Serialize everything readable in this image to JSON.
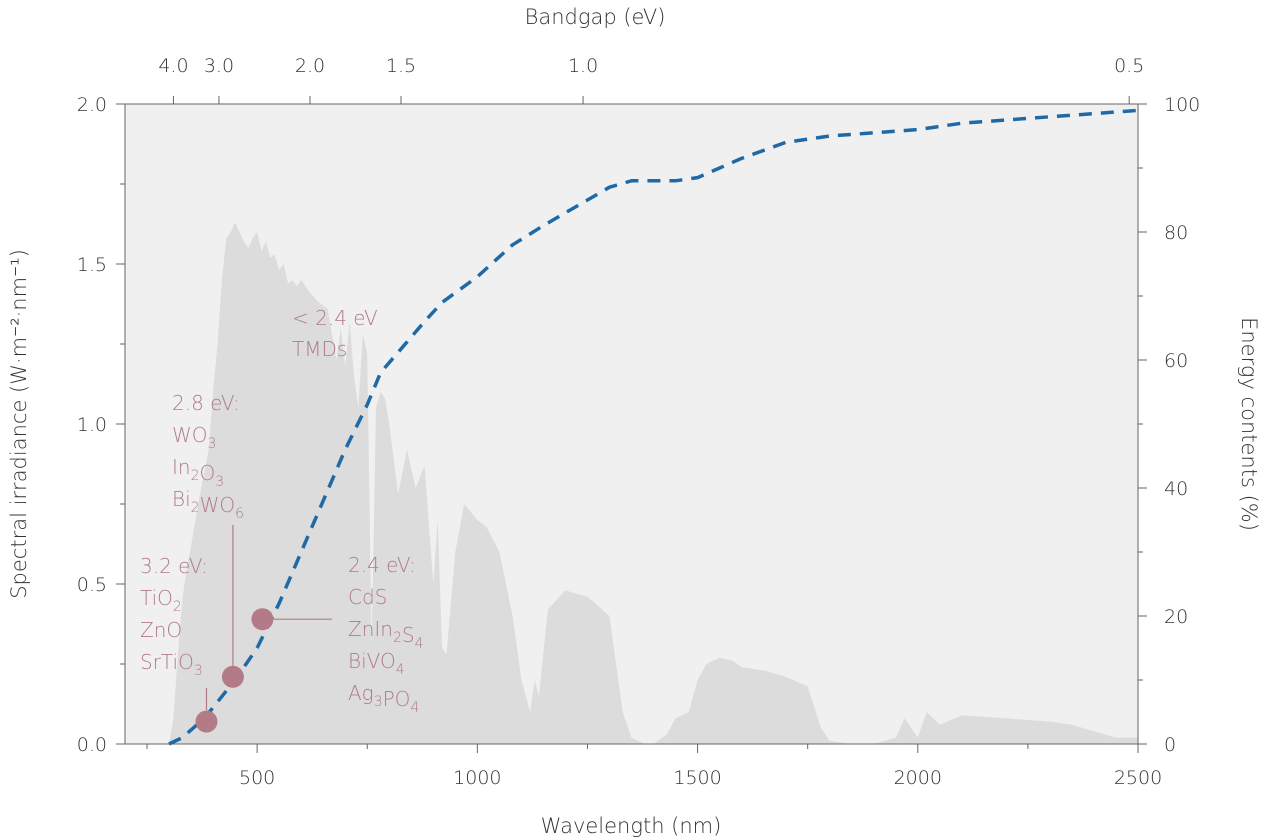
{
  "chart_data": {
    "type": "area",
    "xlabel": "Wavelength (nm)",
    "ylabel_left": "Spectral irradiance (W·m⁻²·nm⁻¹)",
    "ylabel_right": "Energy contents (%)",
    "top_axis_label": "Bandgap (eV)",
    "xlim": [
      200,
      2500
    ],
    "ylim_left": [
      0,
      2.0
    ],
    "ylim_right": [
      0,
      100
    ],
    "x_ticks": [
      500,
      1000,
      1500,
      2000,
      2500
    ],
    "y_left_ticks": [
      0.0,
      0.5,
      1.0,
      1.5,
      2.0
    ],
    "y_right_ticks": [
      0,
      20,
      40,
      60,
      80,
      100
    ],
    "top_ticks": [
      {
        "label": "4.0",
        "ev": 4.0
      },
      {
        "label": "3.0",
        "ev": 3.0
      },
      {
        "label": "2.0",
        "ev": 2.0
      },
      {
        "label": "1.5",
        "ev": 1.5
      },
      {
        "label": "1.0",
        "ev": 1.0
      },
      {
        "label": "0.5",
        "ev": 0.5
      }
    ],
    "colors": {
      "spectrum": "#dcdcdc",
      "energy_line": "#1f6aa6",
      "annotation": "#b07a88",
      "marker": "#b37a87",
      "axis": "#666666",
      "plot_bg": "#f0f0f0"
    },
    "series": [
      {
        "name": "Spectral irradiance",
        "axis": "left",
        "style": "filled-area",
        "x": [
          300,
          310,
          320,
          330,
          340,
          350,
          360,
          370,
          380,
          390,
          400,
          410,
          420,
          430,
          440,
          450,
          460,
          470,
          480,
          490,
          500,
          510,
          520,
          530,
          540,
          550,
          560,
          570,
          580,
          590,
          600,
          620,
          640,
          660,
          680,
          690,
          700,
          710,
          720,
          730,
          740,
          750,
          760,
          770,
          780,
          790,
          800,
          820,
          840,
          860,
          880,
          900,
          910,
          920,
          930,
          950,
          970,
          1000,
          1020,
          1050,
          1080,
          1100,
          1120,
          1130,
          1140,
          1160,
          1200,
          1250,
          1300,
          1330,
          1350,
          1380,
          1400,
          1430,
          1450,
          1480,
          1500,
          1520,
          1550,
          1580,
          1600,
          1650,
          1700,
          1750,
          1780,
          1800,
          1850,
          1900,
          1950,
          1970,
          2000,
          2020,
          2050,
          2100,
          2200,
          2300,
          2350,
          2400,
          2450,
          2500
        ],
        "values": [
          0.0,
          0.08,
          0.28,
          0.45,
          0.55,
          0.62,
          0.7,
          0.78,
          0.85,
          0.92,
          1.1,
          1.25,
          1.45,
          1.58,
          1.6,
          1.63,
          1.6,
          1.57,
          1.55,
          1.58,
          1.6,
          1.54,
          1.57,
          1.52,
          1.53,
          1.48,
          1.5,
          1.44,
          1.45,
          1.43,
          1.45,
          1.41,
          1.38,
          1.36,
          1.2,
          1.3,
          1.18,
          1.32,
          1.15,
          1.05,
          1.28,
          1.22,
          0.3,
          1.05,
          1.1,
          1.08,
          1.0,
          0.78,
          0.92,
          0.8,
          0.87,
          0.5,
          0.7,
          0.3,
          0.28,
          0.6,
          0.75,
          0.7,
          0.68,
          0.6,
          0.4,
          0.2,
          0.1,
          0.2,
          0.15,
          0.42,
          0.48,
          0.46,
          0.4,
          0.1,
          0.02,
          0.0,
          0.0,
          0.03,
          0.08,
          0.1,
          0.2,
          0.25,
          0.27,
          0.26,
          0.24,
          0.23,
          0.21,
          0.18,
          0.05,
          0.01,
          0.0,
          0.0,
          0.02,
          0.08,
          0.02,
          0.1,
          0.06,
          0.09,
          0.08,
          0.07,
          0.06,
          0.04,
          0.02,
          0.02
        ]
      },
      {
        "name": "Energy contents",
        "axis": "right",
        "style": "dashed-line",
        "x": [
          300,
          330,
          380,
          450,
          500,
          550,
          600,
          650,
          700,
          750,
          780,
          830,
          880,
          920,
          1000,
          1080,
          1150,
          1200,
          1250,
          1300,
          1350,
          1400,
          1450,
          1500,
          1550,
          1600,
          1700,
          1800,
          1900,
          2000,
          2100,
          2200,
          2300,
          2400,
          2500
        ],
        "values": [
          0,
          1,
          4,
          10,
          15,
          22,
          30,
          38,
          46,
          53,
          58,
          62,
          66,
          69,
          73,
          78,
          81,
          83,
          85,
          87,
          88,
          88,
          88,
          88.5,
          90,
          91.5,
          94,
          95,
          95.5,
          96,
          97,
          97.5,
          98,
          98.5,
          99
        ]
      }
    ],
    "markers": [
      {
        "x": 385,
        "value": 3.5,
        "axis": "right"
      },
      {
        "x": 445,
        "value": 10.5,
        "axis": "right"
      },
      {
        "x": 512,
        "value": 19.5,
        "axis": "right"
      }
    ],
    "annotations": [
      {
        "id": "ann-3-2",
        "lines": [
          "3.2 eV:",
          "TiO_2",
          "ZnO",
          "SrTiO_3"
        ]
      },
      {
        "id": "ann-2-8",
        "lines": [
          "2.8 eV:",
          "WO_3",
          "In_2O_3",
          "Bi_2WO_6"
        ]
      },
      {
        "id": "ann-2-4",
        "lines": [
          "2.4 eV:",
          "CdS",
          "ZnIn_2S_4",
          "BiVO_4",
          "Ag_3PO_4"
        ]
      },
      {
        "id": "ann-tmd",
        "lines": [
          "< 2.4 eV",
          "TMDs"
        ]
      }
    ]
  }
}
